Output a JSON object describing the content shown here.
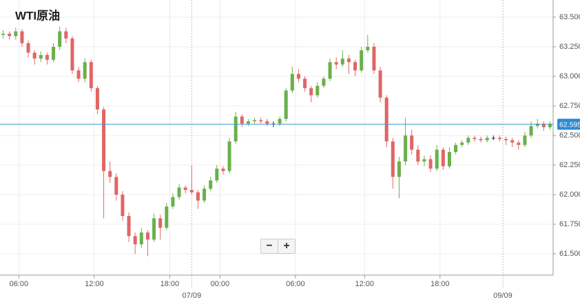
{
  "chart_data": {
    "type": "candlestick",
    "title": "WTI原油",
    "open": [
      63.35,
      63.36,
      63.34,
      63.38,
      63.28,
      63.2,
      63.15,
      63.18,
      63.14,
      63.25,
      63.38,
      63.32,
      63.05,
      62.98,
      63.12,
      62.9,
      62.72,
      62.2,
      62.15,
      62.0,
      61.82,
      61.65,
      61.58,
      61.68,
      61.62,
      61.8,
      61.72,
      61.9,
      61.98,
      62.06,
      62.04,
      62.02,
      61.95,
      62.05,
      62.12,
      62.22,
      62.2,
      62.45,
      62.66,
      62.6,
      62.62,
      62.63,
      62.62,
      62.6,
      62.6,
      62.64,
      62.88,
      63.02,
      62.98,
      62.9,
      62.84,
      62.92,
      62.98,
      63.12,
      63.1,
      63.15,
      63.12,
      63.05,
      63.22,
      63.25,
      63.05,
      62.82,
      62.45,
      62.15,
      62.28,
      62.5,
      62.38,
      62.28,
      62.3,
      62.22,
      62.38,
      62.24,
      62.36,
      62.42,
      62.44,
      62.48,
      62.47,
      62.46,
      62.48,
      62.48,
      62.47,
      62.46,
      62.44,
      62.42,
      62.5,
      62.58,
      62.6,
      62.57
    ],
    "high": [
      63.39,
      63.38,
      63.41,
      63.4,
      63.3,
      63.22,
      63.21,
      63.2,
      63.28,
      63.42,
      63.41,
      63.34,
      63.08,
      63.15,
      63.14,
      62.92,
      62.74,
      62.28,
      62.18,
      62.03,
      61.85,
      61.68,
      61.72,
      61.7,
      61.84,
      61.83,
      61.93,
      62.01,
      62.09,
      62.08,
      62.25,
      62.04,
      62.08,
      62.15,
      62.25,
      62.24,
      62.48,
      62.7,
      62.68,
      62.64,
      62.65,
      62.65,
      62.64,
      62.62,
      62.66,
      62.9,
      63.08,
      63.06,
      63.0,
      62.92,
      62.95,
      63.0,
      63.15,
      63.16,
      63.22,
      63.18,
      63.14,
      63.25,
      63.35,
      63.28,
      63.08,
      62.84,
      62.48,
      62.32,
      62.65,
      62.55,
      62.42,
      62.33,
      62.33,
      62.42,
      62.4,
      62.4,
      62.44,
      62.46,
      62.5,
      62.5,
      62.49,
      62.5,
      62.5,
      62.5,
      62.49,
      62.48,
      62.46,
      62.53,
      62.62,
      62.64,
      62.62,
      62.62
    ],
    "low": [
      63.32,
      63.31,
      63.31,
      63.25,
      63.16,
      63.1,
      63.12,
      63.1,
      63.12,
      63.22,
      63.28,
      63.02,
      62.95,
      62.95,
      62.87,
      62.68,
      61.8,
      62.1,
      61.95,
      61.78,
      61.6,
      61.5,
      61.55,
      61.48,
      61.6,
      61.62,
      61.7,
      61.88,
      61.96,
      62.01,
      62.0,
      61.88,
      61.93,
      62.03,
      62.1,
      62.17,
      62.18,
      62.43,
      62.57,
      62.58,
      62.6,
      62.6,
      62.58,
      62.57,
      62.58,
      62.62,
      62.86,
      62.95,
      62.87,
      62.78,
      62.82,
      62.9,
      62.96,
      63.06,
      63.08,
      63.02,
      63.0,
      63.03,
      63.2,
      63.02,
      62.78,
      62.4,
      62.05,
      61.97,
      62.25,
      62.34,
      62.25,
      62.24,
      62.19,
      62.2,
      62.21,
      62.22,
      62.34,
      62.4,
      62.42,
      62.45,
      62.44,
      62.44,
      62.46,
      62.45,
      62.42,
      62.4,
      62.38,
      62.4,
      62.48,
      62.56,
      62.54,
      62.55
    ],
    "close": [
      63.36,
      63.34,
      63.38,
      63.28,
      63.2,
      63.15,
      63.18,
      63.14,
      63.25,
      63.38,
      63.32,
      63.05,
      62.98,
      63.12,
      62.9,
      62.72,
      62.2,
      62.15,
      62.0,
      61.82,
      61.65,
      61.58,
      61.68,
      61.62,
      61.8,
      61.72,
      61.9,
      61.98,
      62.06,
      62.04,
      62.02,
      61.95,
      62.05,
      62.12,
      62.22,
      62.2,
      62.45,
      62.66,
      62.6,
      62.62,
      62.63,
      62.62,
      62.6,
      62.6,
      62.64,
      62.88,
      63.02,
      62.98,
      62.9,
      62.84,
      62.92,
      62.98,
      63.12,
      63.1,
      63.15,
      63.12,
      63.05,
      63.22,
      63.25,
      63.05,
      62.82,
      62.45,
      62.15,
      62.28,
      62.5,
      62.38,
      62.28,
      62.3,
      62.22,
      62.38,
      62.24,
      62.36,
      62.42,
      62.44,
      62.48,
      62.47,
      62.46,
      62.48,
      62.48,
      62.47,
      62.46,
      62.44,
      62.42,
      62.5,
      62.58,
      62.6,
      62.57,
      62.6
    ],
    "up_color": "#6ab04c",
    "down_color": "#e06666",
    "flat_color": "#222222",
    "xlim": [
      0,
      88
    ],
    "xticks": [
      {
        "value": 3,
        "label": "06:00"
      },
      {
        "value": 15,
        "label": "12:00"
      },
      {
        "value": 27,
        "label": "18:00"
      },
      {
        "value": 35,
        "label": "00:00"
      },
      {
        "value": 47,
        "label": "06:00"
      },
      {
        "value": 58,
        "label": "12:00"
      },
      {
        "value": 70,
        "label": "18:00"
      }
    ],
    "date_ticks": [
      {
        "value": 30.5,
        "label": "07/09"
      },
      {
        "value": 80,
        "label": "09/09"
      }
    ],
    "ylim": [
      61.32,
      63.645
    ],
    "yticks": [
      {
        "value": 61.5,
        "label": "61.500"
      },
      {
        "value": 61.75,
        "label": "61.750"
      },
      {
        "value": 62,
        "label": "62.000"
      },
      {
        "value": 62.25,
        "label": "62.250"
      },
      {
        "value": 62.5,
        "label": "62.500"
      },
      {
        "value": 62.75,
        "label": "62.750"
      },
      {
        "value": 63,
        "label": "63.000"
      },
      {
        "value": 63.25,
        "label": "63.250"
      },
      {
        "value": 63.5,
        "label": "63.500"
      }
    ],
    "current_price": {
      "value": 62.595,
      "label": "62.595"
    },
    "grid": true
  },
  "controls": {
    "zoom_out": "−",
    "zoom_in": "+"
  }
}
